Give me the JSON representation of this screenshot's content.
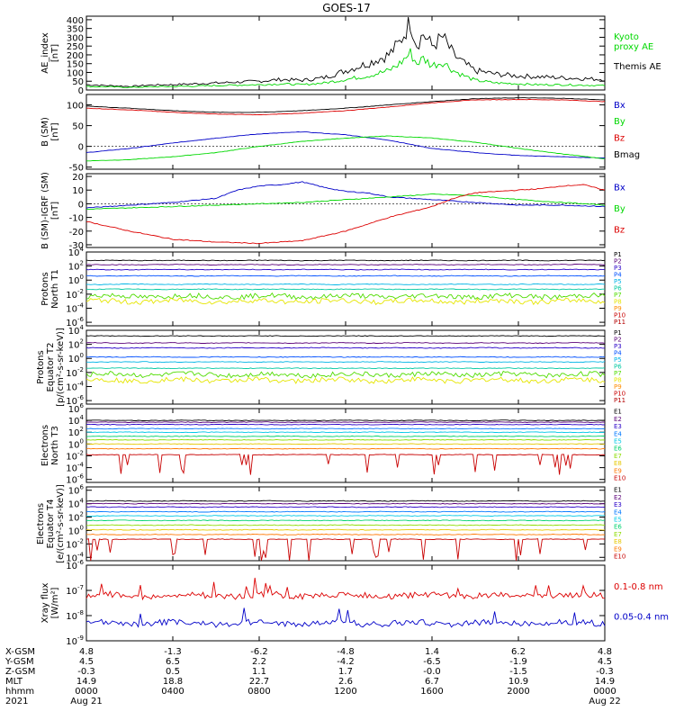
{
  "title": "GOES-17",
  "colors": {
    "black": "#000000",
    "green": "#00d800",
    "blue": "#0000c8",
    "red": "#dc0000",
    "p1": "#000000",
    "p2": "#5a0078",
    "p3": "#2800c8",
    "p4": "#0050ff",
    "p5": "#00b4e6",
    "p6": "#00c8a0",
    "p7": "#50dc00",
    "p8": "#e6e600",
    "p9": "#ff8c00",
    "p10": "#c80000",
    "p11": "#b40000",
    "e1": "#000000",
    "e2": "#5a0078",
    "e3": "#2800c8",
    "e4": "#0078ff",
    "e5": "#00c8e6",
    "e6": "#00d26e",
    "e7": "#8cdc00",
    "e8": "#e6c800",
    "e9": "#ff7800",
    "e10": "#c80000"
  },
  "chart_data": [
    {
      "type": "line",
      "panel": "ae",
      "ylabel": [
        "AE_index",
        "[nT]"
      ],
      "ylim": [
        0,
        420
      ],
      "yticks": [
        "0",
        "50",
        "100",
        "150",
        "200",
        "250",
        "300",
        "350",
        "400"
      ],
      "legend": [
        {
          "label": "Kyoto proxy AE",
          "lines": [
            "Kyoto",
            "proxy AE"
          ],
          "color": "green"
        },
        {
          "label": "Themis AE",
          "lines": [
            "Themis AE"
          ],
          "color": "black"
        }
      ],
      "series": [
        {
          "name": "Themis AE",
          "color": "black",
          "x": [
            0,
            1,
            2,
            3,
            4,
            5,
            6,
            7,
            8,
            9,
            10,
            11,
            12,
            13,
            14,
            14.5,
            15,
            15.3,
            15.6,
            16,
            16.5,
            17,
            17.5,
            18,
            19,
            20,
            21,
            22,
            23,
            24
          ],
          "y": [
            30,
            25,
            20,
            28,
            30,
            35,
            40,
            45,
            50,
            60,
            55,
            70,
            110,
            150,
            200,
            270,
            390,
            260,
            320,
            250,
            300,
            200,
            150,
            110,
            90,
            80,
            75,
            70,
            65,
            60
          ]
        },
        {
          "name": "Kyoto proxy AE",
          "color": "green",
          "x": [
            0,
            1,
            2,
            3,
            4,
            5,
            6,
            7,
            8,
            9,
            10,
            11,
            12,
            13,
            14,
            14.5,
            15,
            15.3,
            15.6,
            16,
            16.5,
            17,
            17.5,
            18,
            19,
            20,
            21,
            22,
            23,
            24
          ],
          "y": [
            20,
            18,
            15,
            18,
            20,
            22,
            25,
            28,
            30,
            35,
            30,
            40,
            60,
            80,
            110,
            150,
            210,
            150,
            180,
            140,
            160,
            110,
            80,
            55,
            40,
            35,
            30,
            30,
            28,
            25
          ]
        }
      ]
    },
    {
      "type": "line",
      "panel": "b",
      "ylabel": [
        "B (SM)",
        "[nT]"
      ],
      "ylim": [
        -55,
        125
      ],
      "yticks": [
        "-50",
        "0",
        "50",
        "100"
      ],
      "legend": [
        {
          "label": "Bx",
          "color": "blue"
        },
        {
          "label": "By",
          "color": "green"
        },
        {
          "label": "Bz",
          "color": "red"
        },
        {
          "label": "Bmag",
          "color": "black"
        }
      ],
      "series": [
        {
          "name": "Bx",
          "color": "blue",
          "x": [
            0,
            2,
            4,
            6,
            8,
            10,
            12,
            14,
            16,
            18,
            20,
            22,
            24
          ],
          "y": [
            -15,
            -5,
            8,
            20,
            30,
            35,
            28,
            15,
            -5,
            -15,
            -22,
            -25,
            -28
          ]
        },
        {
          "name": "By",
          "color": "green",
          "x": [
            0,
            2,
            4,
            6,
            8,
            10,
            12,
            14,
            16,
            18,
            20,
            22,
            24
          ],
          "y": [
            -35,
            -32,
            -25,
            -15,
            0,
            12,
            20,
            25,
            20,
            10,
            -5,
            -18,
            -30
          ]
        },
        {
          "name": "Bz",
          "color": "red",
          "x": [
            0,
            2,
            4,
            6,
            8,
            10,
            12,
            14,
            16,
            18,
            20,
            22,
            24
          ],
          "y": [
            92,
            88,
            82,
            78,
            76,
            80,
            86,
            95,
            105,
            112,
            113,
            112,
            108
          ]
        },
        {
          "name": "Bmag",
          "color": "black",
          "x": [
            0,
            2,
            4,
            6,
            8,
            10,
            12,
            14,
            16,
            18,
            20,
            22,
            24
          ],
          "y": [
            97,
            92,
            86,
            82,
            82,
            86,
            92,
            100,
            108,
            115,
            117,
            116,
            112
          ]
        }
      ]
    },
    {
      "type": "line",
      "panel": "db",
      "ylabel": [
        "B (SM)-IGRF (SM)",
        "[nT]"
      ],
      "ylim": [
        -32,
        22
      ],
      "yticks": [
        "-30",
        "-20",
        "-10",
        "0",
        "10",
        "20"
      ],
      "legend": [
        {
          "label": "Bx",
          "color": "blue"
        },
        {
          "label": "By",
          "color": "green"
        },
        {
          "label": "Bz",
          "color": "red"
        }
      ],
      "series": [
        {
          "name": "Bx",
          "color": "blue",
          "x": [
            0,
            2,
            4,
            6,
            7,
            8,
            9,
            10,
            11,
            12,
            13,
            14,
            16,
            18,
            20,
            22,
            24
          ],
          "y": [
            -3,
            -1,
            1,
            4,
            10,
            13,
            14,
            16,
            12,
            9,
            8,
            5,
            3,
            1,
            -1,
            -1,
            -2
          ]
        },
        {
          "name": "By",
          "color": "green",
          "x": [
            0,
            2,
            4,
            6,
            8,
            10,
            12,
            14,
            16,
            18,
            20,
            22,
            24
          ],
          "y": [
            -4,
            -3,
            -2,
            -1,
            0,
            1,
            3,
            5,
            7,
            6,
            3,
            1,
            -1
          ]
        },
        {
          "name": "Bz",
          "color": "red",
          "x": [
            0,
            2,
            4,
            6,
            8,
            10,
            12,
            14,
            16,
            17,
            18,
            19,
            20,
            21,
            22,
            23,
            24
          ],
          "y": [
            -13,
            -20,
            -26,
            -28,
            -29,
            -27,
            -20,
            -10,
            -2,
            4,
            8,
            9,
            10,
            11,
            13,
            14,
            10
          ]
        }
      ]
    },
    {
      "type": "line",
      "panel": "pn",
      "logscale": true,
      "ylabel": [
        "Protons",
        "North T1"
      ],
      "ylim": [
        -6.5,
        4
      ],
      "yticks": [
        {
          "b": "10",
          "e": "4"
        },
        {
          "b": "10",
          "e": "2"
        },
        {
          "b": "10",
          "e": "0"
        },
        {
          "b": "10",
          "e": "-2"
        },
        {
          "b": "10",
          "e": "-4"
        },
        {
          "b": "10",
          "e": "-6"
        }
      ],
      "legend": [
        {
          "label": "P1",
          "color": "p1"
        },
        {
          "label": "P2",
          "color": "p2"
        },
        {
          "label": "P3",
          "color": "p3"
        },
        {
          "label": "P4",
          "color": "p4"
        },
        {
          "label": "P5",
          "color": "p5"
        },
        {
          "label": "P6",
          "color": "p6"
        },
        {
          "label": "P7",
          "color": "p7"
        },
        {
          "label": "P8",
          "color": "p8"
        },
        {
          "label": "P9",
          "color": "p9"
        },
        {
          "label": "P10",
          "color": "p10"
        },
        {
          "label": "P11",
          "color": "p11"
        }
      ],
      "series": [
        {
          "name": "P1",
          "color": "p1",
          "level": 2.8
        },
        {
          "name": "P2",
          "color": "p2",
          "level": 2.2
        },
        {
          "name": "P3",
          "color": "p3",
          "level": 1.5
        },
        {
          "name": "P4",
          "color": "p4",
          "level": 0.6
        },
        {
          "name": "P5",
          "color": "p5",
          "level": -0.6
        },
        {
          "name": "P6",
          "color": "p6",
          "level": -1.3
        },
        {
          "name": "P7",
          "color": "p7",
          "level": -2.3
        },
        {
          "name": "P8",
          "color": "p8",
          "level": -3.0
        }
      ]
    },
    {
      "type": "line",
      "panel": "pe",
      "logscale": true,
      "ylabel": [
        "Protons",
        "Equator T2",
        "[p/(cm²-s-sr-keV)]"
      ],
      "ylim": [
        -6.5,
        4
      ],
      "yticks": [
        {
          "b": "10",
          "e": "4"
        },
        {
          "b": "10",
          "e": "2"
        },
        {
          "b": "10",
          "e": "0"
        },
        {
          "b": "10",
          "e": "-2"
        },
        {
          "b": "10",
          "e": "-4"
        },
        {
          "b": "10",
          "e": "-6"
        }
      ],
      "legend": [
        {
          "label": "P1",
          "color": "p1"
        },
        {
          "label": "P2",
          "color": "p2"
        },
        {
          "label": "P3",
          "color": "p3"
        },
        {
          "label": "P4",
          "color": "p4"
        },
        {
          "label": "P5",
          "color": "p5"
        },
        {
          "label": "P6",
          "color": "p6"
        },
        {
          "label": "P7",
          "color": "p7"
        },
        {
          "label": "P8",
          "color": "p8"
        },
        {
          "label": "P9",
          "color": "p9"
        },
        {
          "label": "P10",
          "color": "p10"
        },
        {
          "label": "P11",
          "color": "p11"
        }
      ],
      "series": [
        {
          "name": "P1",
          "color": "p1",
          "level": 3.2
        },
        {
          "name": "P2",
          "color": "p2",
          "level": 2.2
        },
        {
          "name": "P3",
          "color": "p3",
          "level": 1.5
        },
        {
          "name": "P4",
          "color": "p4",
          "level": 0.2
        },
        {
          "name": "P5",
          "color": "p5",
          "level": -0.5
        },
        {
          "name": "P6",
          "color": "p6",
          "level": -1.4
        },
        {
          "name": "P7",
          "color": "p7",
          "level": -2.3
        },
        {
          "name": "P8",
          "color": "p8",
          "level": -3.1
        }
      ]
    },
    {
      "type": "line",
      "panel": "en",
      "logscale": true,
      "ylabel": [
        "Electrons",
        "North T3"
      ],
      "ylim": [
        -6.5,
        6
      ],
      "yticks": [
        {
          "b": "10",
          "e": "6"
        },
        {
          "b": "10",
          "e": "4"
        },
        {
          "b": "10",
          "e": "2"
        },
        {
          "b": "10",
          "e": "0"
        },
        {
          "b": "10",
          "e": "-2"
        },
        {
          "b": "10",
          "e": "-4"
        },
        {
          "b": "10",
          "e": "-6"
        }
      ],
      "legend": [
        {
          "label": "E1",
          "color": "e1"
        },
        {
          "label": "E2",
          "color": "e2"
        },
        {
          "label": "E3",
          "color": "e3"
        },
        {
          "label": "E4",
          "color": "e4"
        },
        {
          "label": "E5",
          "color": "e5"
        },
        {
          "label": "E6",
          "color": "e6"
        },
        {
          "label": "E7",
          "color": "e7"
        },
        {
          "label": "E8",
          "color": "e8"
        },
        {
          "label": "E9",
          "color": "e9"
        },
        {
          "label": "E10",
          "color": "e10"
        }
      ],
      "series": [
        {
          "name": "E1",
          "color": "e1",
          "level": 4.0
        },
        {
          "name": "E2",
          "color": "e2",
          "level": 3.7
        },
        {
          "name": "E3",
          "color": "e3",
          "level": 3.3
        },
        {
          "name": "E4",
          "color": "e4",
          "level": 2.6
        },
        {
          "name": "E5",
          "color": "e5",
          "level": 2.0
        },
        {
          "name": "E6",
          "color": "e6",
          "level": 1.3
        },
        {
          "name": "E7",
          "color": "e7",
          "level": 0.7
        },
        {
          "name": "E8",
          "color": "e8",
          "level": 0.0
        },
        {
          "name": "E9",
          "color": "e9",
          "level": -0.8
        },
        {
          "name": "E10",
          "color": "e10",
          "level": -1.8
        }
      ]
    },
    {
      "type": "line",
      "panel": "ee",
      "logscale": true,
      "ylabel": [
        "Electrons",
        "Equator T4",
        "[e/(cm²-s-sr-keV)]"
      ],
      "ylim": [
        -4.5,
        6.5
      ],
      "yticks": [
        {
          "b": "10",
          "e": "6"
        },
        {
          "b": "10",
          "e": "4"
        },
        {
          "b": "10",
          "e": "2"
        },
        {
          "b": "10",
          "e": "0"
        },
        {
          "b": "10",
          "e": "-2"
        },
        {
          "b": "10",
          "e": "-4"
        }
      ],
      "legend": [
        {
          "label": "E1",
          "color": "e1"
        },
        {
          "label": "E2",
          "color": "e2"
        },
        {
          "label": "E3",
          "color": "e3"
        },
        {
          "label": "E4",
          "color": "e4"
        },
        {
          "label": "E5",
          "color": "e5"
        },
        {
          "label": "E6",
          "color": "e6"
        },
        {
          "label": "E7",
          "color": "e7"
        },
        {
          "label": "E8",
          "color": "e8"
        },
        {
          "label": "E9",
          "color": "e9"
        },
        {
          "label": "E10",
          "color": "e10"
        }
      ],
      "series": [
        {
          "name": "E1",
          "color": "e1",
          "level": 4.4
        },
        {
          "name": "E2",
          "color": "e2",
          "level": 4.0
        },
        {
          "name": "E3",
          "color": "e3",
          "level": 3.5
        },
        {
          "name": "E4",
          "color": "e4",
          "level": 2.8
        },
        {
          "name": "E5",
          "color": "e5",
          "level": 2.2
        },
        {
          "name": "E6",
          "color": "e6",
          "level": 1.5
        },
        {
          "name": "E7",
          "color": "e7",
          "level": 0.8
        },
        {
          "name": "E8",
          "color": "e8",
          "level": 0.1
        },
        {
          "name": "E9",
          "color": "e9",
          "level": -0.6
        },
        {
          "name": "E10",
          "color": "e10",
          "level": -1.3
        }
      ]
    },
    {
      "type": "line",
      "panel": "xr",
      "logscale": true,
      "ylabel": [
        "Xray flux",
        "[W/m²]"
      ],
      "ylim": [
        -9,
        -6
      ],
      "yticks": [
        {
          "b": "10",
          "e": "-6"
        },
        {
          "b": "10",
          "e": "-7"
        },
        {
          "b": "10",
          "e": "-8"
        },
        {
          "b": "10",
          "e": "-9"
        }
      ],
      "legend": [
        {
          "label": "0.1-0.8 nm",
          "color": "red"
        },
        {
          "label": "0.05-0.4 nm",
          "color": "blue"
        }
      ],
      "series": [
        {
          "name": "0.1-0.8 nm",
          "color": "red",
          "level": -7.2
        },
        {
          "name": "0.05-0.4 nm",
          "color": "blue",
          "level": -8.3
        }
      ]
    }
  ],
  "xaxis": {
    "range": [
      0,
      24
    ],
    "row_labels": [
      "X-GSM",
      "Y-GSM",
      "Z-GSM",
      "MLT",
      "hhmm",
      "2021"
    ],
    "columns": [
      {
        "t": 0,
        "vals": [
          "4.8",
          "4.5",
          "-0.3",
          "14.9",
          "0000",
          "Aug 21"
        ]
      },
      {
        "t": 4,
        "vals": [
          "-1.3",
          "6.5",
          "0.5",
          "18.8",
          "0400",
          ""
        ]
      },
      {
        "t": 8,
        "vals": [
          "-6.2",
          "2.2",
          "1.1",
          "22.7",
          "0800",
          ""
        ]
      },
      {
        "t": 12,
        "vals": [
          "-4.8",
          "-4.2",
          "1.7",
          "2.6",
          "1200",
          ""
        ]
      },
      {
        "t": 16,
        "vals": [
          "1.4",
          "-6.5",
          "-0.0",
          "6.7",
          "1600",
          ""
        ]
      },
      {
        "t": 20,
        "vals": [
          "6.2",
          "-1.9",
          "-1.5",
          "10.9",
          "2000",
          ""
        ]
      },
      {
        "t": 24,
        "vals": [
          "4.8",
          "4.5",
          "-0.3",
          "14.9",
          "0000",
          "Aug 22"
        ]
      }
    ]
  }
}
